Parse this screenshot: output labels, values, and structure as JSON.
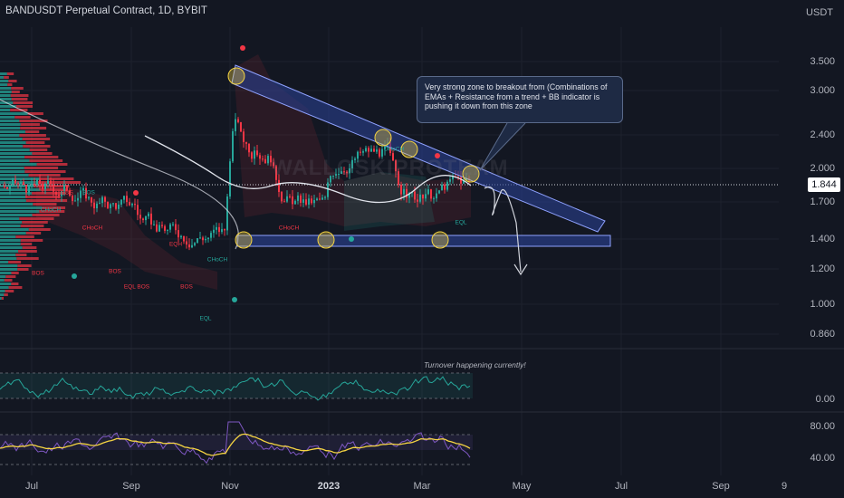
{
  "header": {
    "title": "BANDUSDT Perpetual Contract, 1D, BYBIT",
    "currency": "USDT"
  },
  "price_axis": {
    "ticks": [
      "3.500",
      "3.000",
      "2.400",
      "2.000",
      "1.700",
      "1.400",
      "1.200",
      "1.000",
      "0.860"
    ],
    "last_price": "1.844"
  },
  "oscillator_axis": {
    "ticks": [
      "0.00"
    ]
  },
  "rsi_axis": {
    "ticks": [
      "80.00",
      "40.00"
    ]
  },
  "time_axis": {
    "labels": [
      "Jul",
      "Sep",
      "Nov",
      "2023",
      "Mar",
      "May",
      "Jul",
      "Sep",
      "9"
    ]
  },
  "annotations": {
    "callout": "Very strong zone to breakout from (Combinations of EMAs + Resistance from a trend + BB indicator is pushing it down from this zone",
    "oscillator_note": "Turnover happening currently!",
    "watermark": "WALLOSKIPROTEAM"
  },
  "chart_labels": [
    {
      "text": "BOS",
      "color": "#f23645"
    },
    {
      "text": "BOS",
      "color": "#f23645"
    },
    {
      "text": "BOS",
      "color": "#f23645"
    },
    {
      "text": "BOS",
      "color": "#f23645"
    },
    {
      "text": "BOS",
      "color": "#26a69a"
    },
    {
      "text": "CHoCH",
      "color": "#26a69a"
    },
    {
      "text": "CHoCH",
      "color": "#f23645"
    },
    {
      "text": "EQH",
      "color": "#f23645"
    },
    {
      "text": "EQL BOS",
      "color": "#f23645"
    },
    {
      "text": "CHoCH",
      "color": "#26a69a"
    },
    {
      "text": "EQL",
      "color": "#26a69a"
    },
    {
      "text": "CHoCH",
      "color": "#f23645"
    },
    {
      "text": "CHoCH",
      "color": "#26a69a"
    },
    {
      "text": "EQL",
      "color": "#26a69a"
    }
  ],
  "colors": {
    "background": "#131722",
    "bull": "#26a69a",
    "bear": "#f23645",
    "zone": "#2a3f8f",
    "ema": "#e0e3eb",
    "rsi_line": "#7e57c2",
    "rsi_ma": "#f5d442",
    "osc_line": "#26a69a"
  }
}
